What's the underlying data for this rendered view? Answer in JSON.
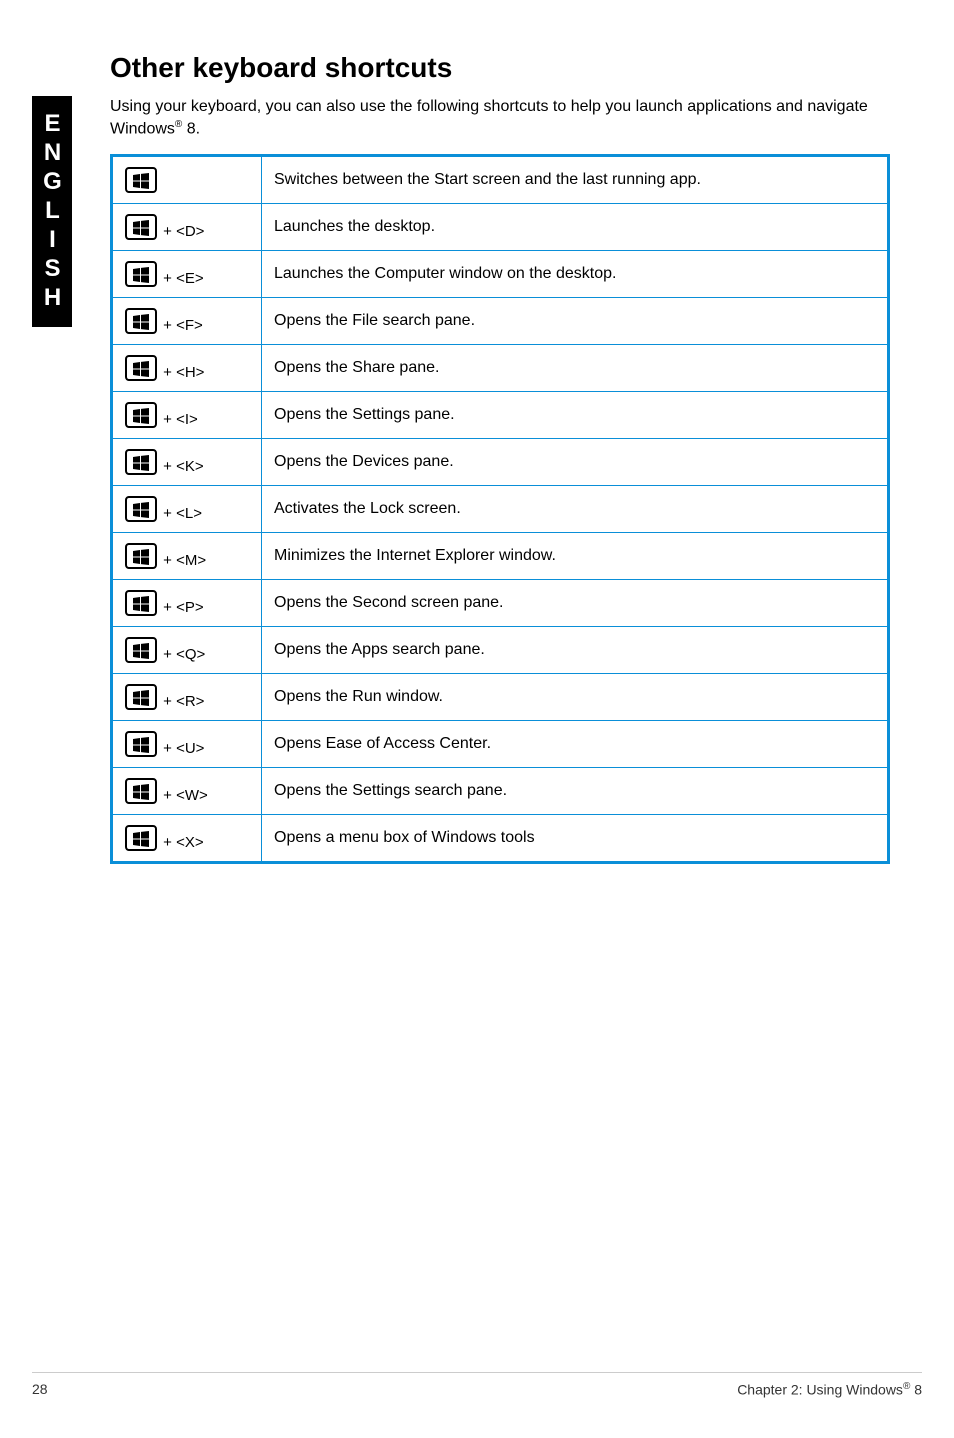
{
  "side_tab": "ENGLISH",
  "heading": "Other keyboard shortcuts",
  "intro_prefix": "Using your keyboard, you can also use the following shortcuts to help you launch applications and navigate Windows",
  "intro_reg": "®",
  "intro_suffix": " 8.",
  "table": {
    "border_color": "#0a8fd8",
    "rows": [
      {
        "combo": "",
        "desc": "Switches between the Start screen and the last running app."
      },
      {
        "combo": " + <D>",
        "desc": "Launches the desktop."
      },
      {
        "combo": " + <E>",
        "desc": "Launches the Computer window on the desktop."
      },
      {
        "combo": " + <F>",
        "desc": "Opens the File search pane."
      },
      {
        "combo": " + <H>",
        "desc": "Opens the Share pane."
      },
      {
        "combo": " + <I>",
        "desc": "Opens the Settings pane."
      },
      {
        "combo": " + <K>",
        "desc": "Opens the Devices pane."
      },
      {
        "combo": " + <L>",
        "desc": "Activates the Lock screen."
      },
      {
        "combo": " + <M>",
        "desc": "Minimizes the Internet Explorer window."
      },
      {
        "combo": " + <P>",
        "desc": "Opens the Second screen pane."
      },
      {
        "combo": " + <Q>",
        "desc": "Opens the Apps search pane."
      },
      {
        "combo": " + <R>",
        "desc": "Opens the Run window."
      },
      {
        "combo": " + <U>",
        "desc": "Opens Ease of Access Center."
      },
      {
        "combo": " + <W>",
        "desc": "Opens the Settings search pane."
      },
      {
        "combo": " + <X>",
        "desc": "Opens a menu box of Windows tools"
      }
    ]
  },
  "footer": {
    "page_number": "28",
    "chapter_prefix": "Chapter 2: Using Windows",
    "chapter_reg": "®",
    "chapter_suffix": " 8"
  },
  "icon_fill": "#000000"
}
